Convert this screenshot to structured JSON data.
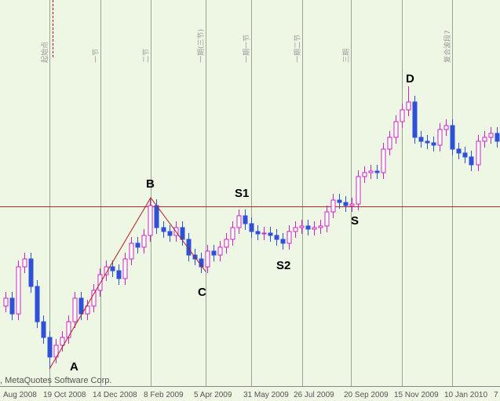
{
  "chart_data": {
    "type": "candlestick",
    "up_color": "#d020c8",
    "down_color": "#3050d8",
    "ylim": [
      0,
      490
    ],
    "open": [
      100,
      110,
      90,
      150,
      160,
      125,
      80,
      60,
      35,
      50,
      60,
      80,
      110,
      90,
      100,
      120,
      140,
      150,
      145,
      135,
      160,
      180,
      175,
      190,
      228,
      200,
      195,
      190,
      200,
      185,
      165,
      160,
      150,
      170,
      165,
      175,
      185,
      200,
      215,
      205,
      195,
      192,
      193,
      190,
      185,
      180,
      195,
      200,
      202,
      198,
      200,
      202,
      220,
      235,
      232,
      228,
      230,
      265,
      270,
      272,
      270,
      300,
      315,
      335,
      350,
      360,
      315,
      310,
      308,
      305,
      325,
      330,
      300,
      295,
      290,
      280,
      310,
      315,
      320
    ],
    "high": [
      118,
      118,
      158,
      168,
      168,
      133,
      88,
      68,
      58,
      68,
      88,
      118,
      118,
      108,
      128,
      148,
      158,
      158,
      153,
      168,
      188,
      188,
      198,
      238,
      236,
      208,
      203,
      208,
      208,
      193,
      173,
      168,
      178,
      178,
      183,
      193,
      208,
      223,
      223,
      213,
      203,
      201,
      201,
      198,
      193,
      203,
      208,
      210,
      210,
      208,
      210,
      228,
      243,
      243,
      240,
      238,
      273,
      278,
      280,
      280,
      308,
      323,
      343,
      358,
      380,
      368,
      323,
      318,
      316,
      333,
      338,
      338,
      308,
      303,
      298,
      318,
      323,
      328,
      328
    ],
    "low": [
      92,
      82,
      82,
      142,
      117,
      72,
      52,
      20,
      27,
      42,
      52,
      72,
      82,
      82,
      92,
      112,
      132,
      137,
      127,
      127,
      152,
      167,
      167,
      182,
      192,
      187,
      182,
      182,
      177,
      157,
      152,
      142,
      142,
      157,
      157,
      167,
      177,
      192,
      197,
      187,
      184,
      184,
      182,
      177,
      172,
      172,
      187,
      192,
      190,
      190,
      192,
      194,
      212,
      224,
      220,
      220,
      222,
      257,
      262,
      262,
      262,
      292,
      307,
      327,
      342,
      307,
      302,
      300,
      297,
      297,
      317,
      292,
      287,
      282,
      272,
      272,
      302,
      307,
      302
    ],
    "close": [
      110,
      90,
      150,
      160,
      125,
      80,
      60,
      35,
      50,
      60,
      80,
      110,
      90,
      100,
      120,
      140,
      150,
      145,
      135,
      160,
      180,
      175,
      190,
      228,
      200,
      195,
      190,
      200,
      185,
      165,
      160,
      150,
      170,
      165,
      175,
      185,
      200,
      215,
      205,
      195,
      192,
      193,
      190,
      185,
      180,
      195,
      200,
      202,
      198,
      200,
      202,
      220,
      235,
      232,
      228,
      230,
      265,
      270,
      272,
      270,
      300,
      315,
      335,
      350,
      360,
      315,
      310,
      308,
      305,
      325,
      330,
      300,
      295,
      290,
      280,
      310,
      315,
      320,
      310
    ],
    "x_labels": [
      "Aug 2008",
      "19 Oct 2008",
      "14 Dec 2008",
      "8 Feb 2009",
      "5 Apr 2009",
      "31 May 2009",
      "26 Jul 2009",
      "20 Sep 2009",
      "15 Nov 2009",
      "10 Jan 2010",
      "7"
    ],
    "wave_labels": [
      "A",
      "B",
      "C",
      "D",
      "S1",
      "S2",
      "S"
    ],
    "line_notes": [
      "起始点",
      "一节",
      "二节",
      "一期(三节)",
      "一期一节",
      "一期二节",
      "三期",
      "复合波段7"
    ],
    "copyright": ", MetaQuotes Software Corp."
  }
}
